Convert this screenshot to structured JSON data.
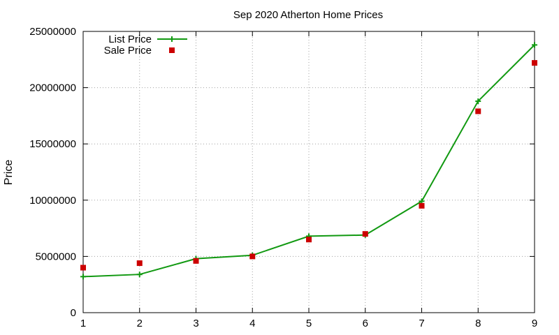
{
  "chart_data": {
    "type": "line",
    "title": "Sep 2020 Atherton Home Prices",
    "xlabel": "",
    "ylabel": "Price",
    "x": [
      1,
      2,
      3,
      4,
      5,
      6,
      7,
      8,
      9
    ],
    "xlim": [
      1,
      9
    ],
    "ylim": [
      0,
      25000000
    ],
    "x_ticks": [
      "1",
      "2",
      "3",
      "4",
      "5",
      "6",
      "7",
      "8",
      "9"
    ],
    "y_ticks": [
      "0",
      "5000000",
      "10000000",
      "15000000",
      "20000000",
      "25000000"
    ],
    "grid": true,
    "legend_position": "top-left",
    "series": [
      {
        "name": "List Price",
        "style": "line-with-plus-markers",
        "color": "#119911",
        "values": [
          3200000,
          3400000,
          4800000,
          5100000,
          6800000,
          6900000,
          9900000,
          18800000,
          23800000
        ]
      },
      {
        "name": "Sale Price",
        "style": "square-points",
        "color": "#cc0000",
        "values": [
          4000000,
          4400000,
          4600000,
          5000000,
          6500000,
          7000000,
          9500000,
          17900000,
          22200000
        ]
      }
    ]
  }
}
